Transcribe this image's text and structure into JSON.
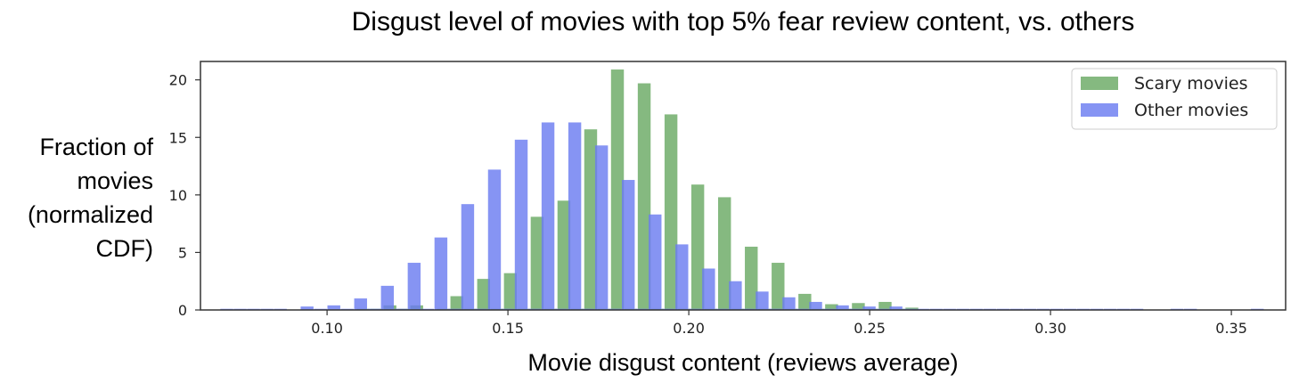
{
  "chart_data": {
    "type": "bar",
    "title": "Disgust level of movies with top 5% fear review content, vs. others",
    "xlabel": "Movie disgust content (reviews average)",
    "ylabel_lines": [
      "Fraction of",
      "movies",
      "(normalized",
      "CDF)"
    ],
    "xlim": [
      0.065,
      0.365
    ],
    "ylim": [
      0,
      21.6
    ],
    "xticks": [
      0.1,
      0.15,
      0.2,
      0.25,
      0.3,
      0.35
    ],
    "xtick_labels": [
      "0.10",
      "0.15",
      "0.20",
      "0.25",
      "0.30",
      "0.35"
    ],
    "yticks": [
      0,
      5,
      10,
      15,
      20
    ],
    "ytick_labels": [
      "0",
      "5",
      "10",
      "15",
      "20"
    ],
    "grid": false,
    "legend_position": "top-right",
    "bin_width": 0.0037,
    "series": [
      {
        "name": "Scary movies",
        "color": "#6aaa64",
        "x": [
          0.1045,
          0.1082,
          0.1119,
          0.1156,
          0.1193,
          0.123,
          0.1267,
          0.1304,
          0.1341,
          0.1378,
          0.1415,
          0.1452,
          0.1489,
          0.1526,
          0.1563,
          0.16,
          0.1637,
          0.1674,
          0.1711,
          0.1748,
          0.1785,
          0.1822,
          0.1859,
          0.1896,
          0.1933,
          0.197,
          0.2007,
          0.2044,
          0.2081,
          0.2118,
          0.2155,
          0.2192,
          0.2229,
          0.2266,
          0.2303,
          0.234,
          0.2377,
          0.2414,
          0.2451,
          0.2488,
          0.2525,
          0.2562,
          0.2599
        ],
        "values": [
          0,
          0.1,
          0.1,
          0.4,
          0.1,
          0.4,
          0,
          0.1,
          1.2,
          0.1,
          2.7,
          0.1,
          3.2,
          0.1,
          8.1,
          0.1,
          9.5,
          0.1,
          15.7,
          0.1,
          20.9,
          0.1,
          19.7,
          0.1,
          17.0,
          0.1,
          10.9,
          0.1,
          9.8,
          0.1,
          5.5,
          0.1,
          4.1,
          0.1,
          1.4,
          0.1,
          0.5,
          0.1,
          0.6,
          0.1,
          0.7,
          0.1,
          0.2
        ]
      },
      {
        "name": "Other movies",
        "color": "#6b7cf0",
        "x": [
          0.0705,
          0.0742,
          0.0779,
          0.0816,
          0.0853,
          0.089,
          0.0927,
          0.0964,
          0.1001,
          0.1038,
          0.1075,
          0.1112,
          0.1149,
          0.1186,
          0.1223,
          0.126,
          0.1297,
          0.1334,
          0.1371,
          0.1408,
          0.1445,
          0.1482,
          0.1519,
          0.1556,
          0.1593,
          0.163,
          0.1667,
          0.1704,
          0.1741,
          0.1778,
          0.1815,
          0.1852,
          0.1889,
          0.1926,
          0.1963,
          0.2,
          0.2037,
          0.2074,
          0.2111,
          0.2148,
          0.2185,
          0.2222,
          0.2259,
          0.2296,
          0.2333,
          0.237,
          0.2407,
          0.2444,
          0.2481,
          0.2518,
          0.2555,
          0.2592,
          0.2629,
          0.2666,
          0.2703,
          0.274,
          0.2777,
          0.2814,
          0.2851,
          0.2888,
          0.2925,
          0.2962,
          0.2999,
          0.3036,
          0.3073,
          0.311,
          0.3147,
          0.3184,
          0.3221,
          0.3258,
          0.3295,
          0.3332,
          0.3369,
          0.3406,
          0.3443,
          0.348,
          0.3517,
          0.3554
        ],
        "values": [
          0.1,
          0.1,
          0.1,
          0.1,
          0.1,
          0,
          0.3,
          0.1,
          0.4,
          0.1,
          1.0,
          0.1,
          2.1,
          0.1,
          4.1,
          0.1,
          6.3,
          0.1,
          9.2,
          0.1,
          12.2,
          0.1,
          14.8,
          0.1,
          16.3,
          0.1,
          16.3,
          0.1,
          14.3,
          0.1,
          11.3,
          0.1,
          8.3,
          0.1,
          5.7,
          0.1,
          3.6,
          0.1,
          2.5,
          0.1,
          1.6,
          0.1,
          1.1,
          0.1,
          0.7,
          0.1,
          0.4,
          0.1,
          0.3,
          0.1,
          0.3,
          0.1,
          0.1,
          0.1,
          0.1,
          0.1,
          0.1,
          0.1,
          0.1,
          0.1,
          0.1,
          0.1,
          0.1,
          0.1,
          0.1,
          0.1,
          0.1,
          0.1,
          0.1,
          0,
          0,
          0.1,
          0.1,
          0,
          0,
          0,
          0,
          0.1
        ]
      }
    ]
  }
}
